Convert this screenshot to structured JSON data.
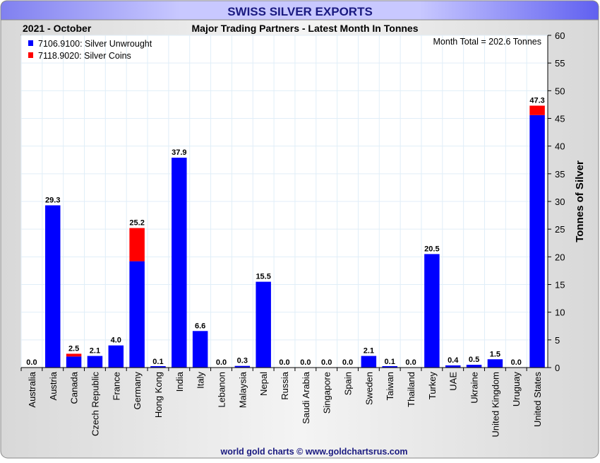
{
  "chart_data": {
    "type": "bar",
    "stacked": true,
    "title": "SWISS SILVER EXPORTS",
    "subtitle": "Major Trading Partners - Latest Month In Tonnes",
    "period": "2021 - October",
    "total_note": "Month Total = 202.6 Tonnes",
    "ylabel": "Tonnes of Silver",
    "ylim": [
      0,
      60
    ],
    "yticks": [
      0,
      5,
      10,
      15,
      20,
      25,
      30,
      35,
      40,
      45,
      50,
      55,
      60
    ],
    "footer": "world gold charts © www.goldchartsrus.com",
    "legend_position": "top-left",
    "categories": [
      "Australia",
      "Austria",
      "Canada",
      "Czech Republic",
      "France",
      "Germany",
      "Hong Kong",
      "India",
      "Italy",
      "Lebanon",
      "Malaysia",
      "Nepal",
      "Russia",
      "Saudi Arabia",
      "Singapore",
      "Spain",
      "Sweden",
      "Taiwan",
      "Thailand",
      "Turkey",
      "UAE",
      "Ukraine",
      "United Kingdom",
      "Uruguay",
      "United States"
    ],
    "series": [
      {
        "name": "7106.9100: Silver Unwrought",
        "color": "#0000ff",
        "values": [
          0,
          29.3,
          2.0,
          2.1,
          4.0,
          19.2,
          0.1,
          37.9,
          6.6,
          0,
          0.3,
          15.5,
          0,
          0,
          0,
          0,
          2.1,
          0.1,
          0,
          20.5,
          0.4,
          0.5,
          1.5,
          0,
          45.6
        ]
      },
      {
        "name": "7118.9020: Silver Coins",
        "color": "#ff0000",
        "values": [
          0,
          0,
          0.5,
          0,
          0,
          6.0,
          0,
          0,
          0,
          0,
          0,
          0,
          0,
          0,
          0,
          0,
          0,
          0,
          0,
          0,
          0,
          0,
          0,
          0,
          1.7
        ]
      }
    ],
    "totals": [
      "0.0",
      "29.3",
      "2.5",
      "2.1",
      "4.0",
      "25.2",
      "0.1",
      "37.9",
      "6.6",
      "0.0",
      "0.3",
      "15.5",
      "0.0",
      "0.0",
      "0.0",
      "0.0",
      "2.1",
      "0.1",
      "0.0",
      "20.5",
      "0.4",
      "0.5",
      "1.5",
      "0.0",
      "47.3"
    ]
  }
}
